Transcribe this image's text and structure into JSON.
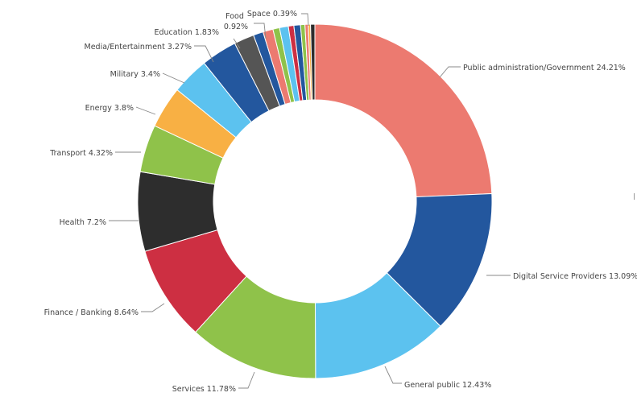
{
  "chart_data": {
    "type": "pie",
    "variant": "donut",
    "title": "",
    "slices": [
      {
        "label": "Public administration/Government 24.21%",
        "value": 24.21,
        "color": "#ec7a70"
      },
      {
        "label": "Digital Service Providers 13.09%",
        "value": 13.09,
        "color": "#23579e"
      },
      {
        "label": "General public 12.43%",
        "value": 12.43,
        "color": "#5cc2ef"
      },
      {
        "label": "Services 11.78%",
        "value": 11.78,
        "color": "#8fc24a"
      },
      {
        "label": "Finance / Banking 8.64%",
        "value": 8.64,
        "color": "#cd2f42"
      },
      {
        "label": "Health 7.2%",
        "value": 7.2,
        "color": "#2d2d2d"
      },
      {
        "label": "Transport 4.32%",
        "value": 4.32,
        "color": "#8fc24a"
      },
      {
        "label": "Energy 3.8%",
        "value": 3.8,
        "color": "#f8b044"
      },
      {
        "label": "Military 3.4%",
        "value": 3.4,
        "color": "#5cc2ef"
      },
      {
        "label": "Media/Entertainment 3.27%",
        "value": 3.27,
        "color": "#23579e"
      },
      {
        "label": "Education 1.83%",
        "value": 1.83,
        "color": "#555555"
      },
      {
        "label": "",
        "value": 0.9,
        "color": "#23579e"
      },
      {
        "label": "Food 0.92%",
        "value": 0.92,
        "color": "#ec7a70"
      },
      {
        "label": "",
        "value": 0.6,
        "color": "#8fc24a"
      },
      {
        "label": "",
        "value": 0.8,
        "color": "#5cc2ef"
      },
      {
        "label": "",
        "value": 0.5,
        "color": "#cd2f42"
      },
      {
        "label": "",
        "value": 0.6,
        "color": "#23579e"
      },
      {
        "label": "",
        "value": 0.4,
        "color": "#8fc24a"
      },
      {
        "label": "",
        "value": 0.3,
        "color": "#ec7a70"
      },
      {
        "label": "",
        "value": 0.2,
        "color": "#f8b044"
      },
      {
        "label": "Space 0.39%",
        "value": 0.39,
        "color": "#2d2d2d"
      }
    ]
  }
}
